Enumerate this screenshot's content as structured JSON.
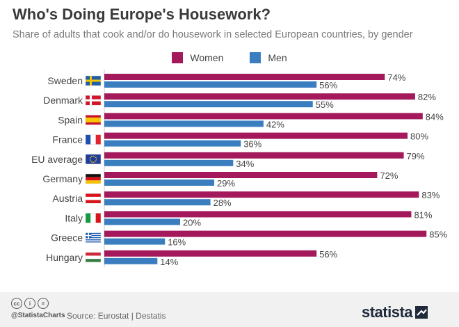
{
  "header": {
    "title": "Who's Doing Europe's Housework?",
    "subtitle": "Share of adults that cook and/or do housework in selected European countries, by gender"
  },
  "chart_data": {
    "type": "bar",
    "orientation": "horizontal",
    "categories": [
      "Sweden",
      "Denmark",
      "Spain",
      "France",
      "EU average",
      "Germany",
      "Austria",
      "Italy",
      "Greece",
      "Hungary"
    ],
    "series": [
      {
        "name": "Women",
        "color": "#a3195b",
        "values": [
          74,
          82,
          84,
          80,
          79,
          72,
          83,
          81,
          85,
          56
        ]
      },
      {
        "name": "Men",
        "color": "#3a7ec0",
        "values": [
          56,
          55,
          42,
          36,
          34,
          29,
          28,
          20,
          16,
          14
        ]
      }
    ],
    "value_suffix": "%",
    "xlim": [
      0,
      100
    ],
    "grid": false,
    "legend": "top-center",
    "flags": [
      "sweden-flag-icon",
      "denmark-flag-icon",
      "spain-flag-icon",
      "france-flag-icon",
      "eu-flag-icon",
      "germany-flag-icon",
      "austria-flag-icon",
      "italy-flag-icon",
      "greece-flag-icon",
      "hungary-flag-icon"
    ]
  },
  "footer": {
    "handle": "@StatistaCharts",
    "source": "Source: Eurostat | Destatis",
    "brand": "statista"
  }
}
